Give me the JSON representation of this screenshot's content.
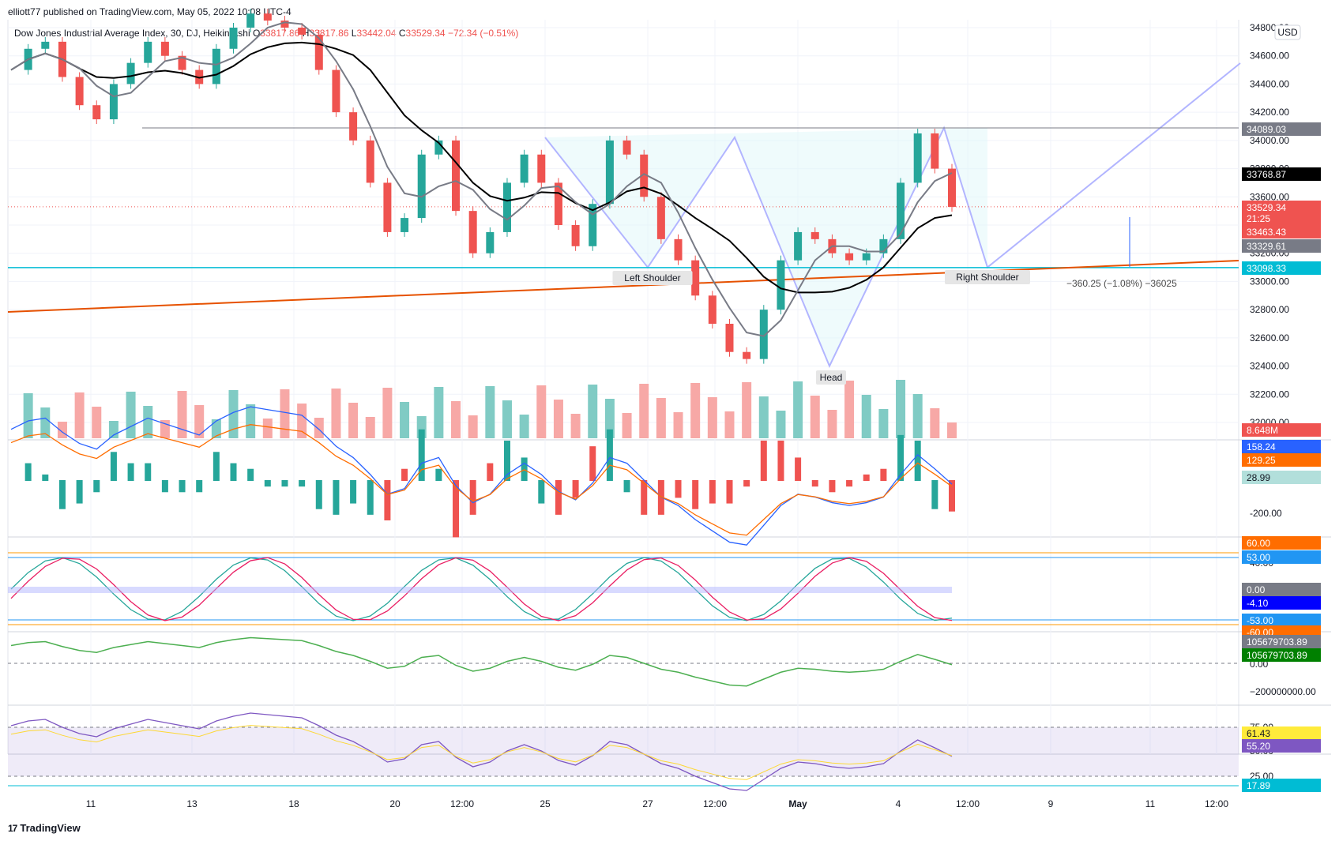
{
  "header": {
    "published": "elliott77 published on TradingView.com, May 05, 2022 10:08 UTC-4",
    "symbol": "Dow Jones Industrial Average Index, 30, DJ, Heikin Ashi",
    "o_label": "O",
    "o_value": "33817.86",
    "h_label": "H",
    "h_value": "33817.86",
    "l_label": "L",
    "l_value": "33442.04",
    "c_label": "C",
    "c_value": "33529.34",
    "change": "−72.34 (−0.51%)"
  },
  "currency": "USD",
  "colors": {
    "up": "#26a69a",
    "down": "#ef5350",
    "ma_black": "#000000",
    "ma_gray": "#787b86",
    "trend_orange": "#e65100",
    "support_cyan": "#00bcd4",
    "pattern": "#b2b5ff",
    "macd": "#2962ff",
    "signal": "#ff6d00",
    "rsi": "#7e57c2",
    "rsi_ma": "#fdd835"
  },
  "price_axis": [
    "34800.00",
    "34600.00",
    "34400.00",
    "34200.00",
    "34000.00",
    "33800.00",
    "33600.00",
    "33400.00",
    "33200.00",
    "33000.00",
    "32800.00",
    "32600.00",
    "32400.00",
    "32200.00",
    "32000.00"
  ],
  "price_labels": [
    {
      "text": "34089.03",
      "bg": "#787b86"
    },
    {
      "text": "33768.87",
      "bg": "#000000"
    },
    {
      "text": "33529.34",
      "bg": "#ef5350"
    },
    {
      "text": "21:25",
      "bg": "#ef5350"
    },
    {
      "text": "33463.43",
      "bg": "#ef5350"
    },
    {
      "text": "33329.61",
      "bg": "#787b86"
    },
    {
      "text": "33098.33",
      "bg": "#00bcd4"
    },
    {
      "text": "8.648M",
      "bg": "#ef5350"
    }
  ],
  "annotations": {
    "left_shoulder": "Left Shoulder",
    "head": "Head",
    "right_shoulder": "Right Shoulder",
    "measure": "−360.25 (−1.08%) −36025"
  },
  "macd_axis": [
    "-200.00"
  ],
  "macd_labels": [
    {
      "text": "158.24",
      "bg": "#2962ff"
    },
    {
      "text": "129.25",
      "bg": "#ff6d00"
    },
    {
      "text": "28.99",
      "bg": "#b2dfdb",
      "fg": "#131722"
    }
  ],
  "osc_axis": [
    "40.00"
  ],
  "osc_labels": [
    {
      "text": "60.00",
      "bg": "#ff6d00"
    },
    {
      "text": "53.00",
      "bg": "#2196f3"
    },
    {
      "text": "0.00",
      "bg": "#787b86"
    },
    {
      "text": "-4.10",
      "bg": "#0000ff"
    },
    {
      "text": "-53.00",
      "bg": "#2196f3"
    },
    {
      "text": "-60.00",
      "bg": "#ff6d00"
    }
  ],
  "ad_axis": [
    "0.00",
    "−200000000.00"
  ],
  "ad_labels": [
    {
      "text": "105679703.89",
      "bg": "#787b86"
    },
    {
      "text": "105679703.89",
      "bg": "#008000"
    }
  ],
  "rsi_axis": [
    "75.00",
    "50.00",
    "25.00"
  ],
  "rsi_labels": [
    {
      "text": "61.43",
      "bg": "#ffeb3b",
      "fg": "#131722"
    },
    {
      "text": "55.20",
      "bg": "#7e57c2"
    },
    {
      "text": "17.89",
      "bg": "#00bcd4"
    }
  ],
  "time_axis": [
    "11",
    "13",
    "18",
    "20",
    "12:00",
    "25",
    "27",
    "12:00",
    "May",
    "4",
    "12:00",
    "9",
    "11",
    "12:00"
  ],
  "footer": "TradingView",
  "chart_data": {
    "type": "candlestick",
    "title": "Dow Jones Industrial Average Index, 30, DJ, Heikin Ashi",
    "price_range": [
      31900,
      34850
    ],
    "key_levels": {
      "neckline": 34089.03,
      "ma_long": 33768.87,
      "last": 33529.34,
      "ma_short": 33329.61,
      "support": 33098.33
    },
    "pattern_points": [
      {
        "label": "Left Shoulder",
        "price": 33100
      },
      {
        "label": "Head",
        "price": 32400
      },
      {
        "label": "Right Shoulder",
        "price": 33100
      }
    ],
    "price_path": [
      34500,
      34650,
      34700,
      34450,
      34250,
      34150,
      34400,
      34550,
      34700,
      34600,
      34500,
      34400,
      34650,
      34800,
      34900,
      34850,
      34800,
      34750,
      34500,
      34200,
      34000,
      33700,
      33350,
      33450,
      33900,
      34000,
      33500,
      33200,
      33350,
      33700,
      33900,
      33700,
      33400,
      33250,
      33550,
      34000,
      33900,
      33600,
      33300,
      33150,
      32900,
      32700,
      32500,
      32450,
      32800,
      33150,
      33350,
      33300,
      33200,
      33150,
      33200,
      33300,
      33700,
      34050,
      33800,
      33529
    ]
  }
}
